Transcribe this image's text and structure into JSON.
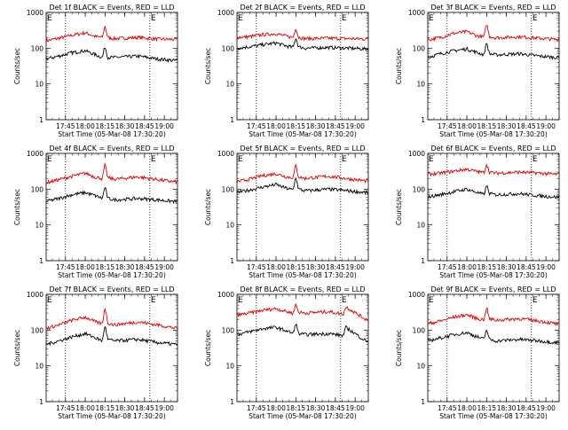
{
  "page": {
    "background": "#ffffff",
    "colors": {
      "events": "#000000",
      "lld": "#e00000",
      "axes": "#000000"
    }
  },
  "chart_data": [
    {
      "type": "line",
      "title": "Det 1f BLACK = Events, RED = LLD",
      "ylabel": "Counts/sec",
      "xlabel": "Start Time (05-Mar-08 17:30:20)",
      "yscale": "log",
      "ylim": [
        1,
        1000
      ],
      "yticks": [
        "1",
        "10",
        "100",
        "1000"
      ],
      "xlim": [
        "17:30:20",
        "19:10:00"
      ],
      "xticks": [
        "17:45",
        "18:00",
        "18:15",
        "18:30",
        "18:45",
        "19:00"
      ],
      "markers": [
        "17:45",
        "18:49"
      ],
      "corner_labels": [
        "E",
        "E"
      ],
      "series": [
        {
          "color": "#e00000",
          "x": [
            "17:30",
            "17:40",
            "17:50",
            "18:00",
            "18:08",
            "18:13",
            "18:15",
            "18:17",
            "18:22",
            "18:40",
            "18:55",
            "19:08"
          ],
          "values": [
            160,
            190,
            230,
            270,
            210,
            200,
            430,
            200,
            185,
            200,
            180,
            175
          ]
        },
        {
          "color": "#000000",
          "x": [
            "17:30",
            "17:40",
            "17:50",
            "18:00",
            "18:08",
            "18:13",
            "18:15",
            "18:17",
            "18:22",
            "18:40",
            "18:55",
            "19:08"
          ],
          "values": [
            50,
            60,
            75,
            85,
            65,
            55,
            115,
            55,
            55,
            60,
            50,
            45
          ]
        }
      ]
    },
    {
      "type": "line",
      "title": "Det 2f BLACK = Events, RED = LLD",
      "ylabel": "Counts/sec",
      "xlabel": "Start Time (05-Mar-08 17:30:20)",
      "yscale": "log",
      "ylim": [
        1,
        1000
      ],
      "yticks": [
        "1",
        "10",
        "100",
        "1000"
      ],
      "xlim": [
        "17:30:20",
        "19:10:00"
      ],
      "xticks": [
        "17:45",
        "18:00",
        "18:15",
        "18:30",
        "18:45",
        "19:00"
      ],
      "markers": [
        "17:45",
        "18:49"
      ],
      "corner_labels": [
        "E",
        "E"
      ],
      "series": [
        {
          "color": "#e00000",
          "x": [
            "17:30",
            "17:40",
            "17:50",
            "18:00",
            "18:08",
            "18:13",
            "18:15",
            "18:17",
            "18:22",
            "18:40",
            "18:55",
            "19:08"
          ],
          "values": [
            200,
            210,
            240,
            255,
            215,
            200,
            380,
            200,
            185,
            190,
            185,
            180
          ]
        },
        {
          "color": "#000000",
          "x": [
            "17:30",
            "17:40",
            "17:50",
            "18:00",
            "18:08",
            "18:13",
            "18:15",
            "18:17",
            "18:22",
            "18:40",
            "18:55",
            "19:08"
          ],
          "values": [
            100,
            110,
            125,
            140,
            115,
            105,
            200,
            110,
            100,
            105,
            100,
            95
          ]
        }
      ]
    },
    {
      "type": "line",
      "title": "Det 3f BLACK = Events, RED = LLD",
      "ylabel": "Counts/sec",
      "xlabel": "Start Time (05-Mar-08 17:30:20)",
      "yscale": "log",
      "ylim": [
        1,
        1000
      ],
      "yticks": [
        "1",
        "10",
        "100",
        "1000"
      ],
      "xlim": [
        "17:30:20",
        "19:10:00"
      ],
      "xticks": [
        "17:45",
        "18:00",
        "18:15",
        "18:30",
        "18:45",
        "19:00"
      ],
      "markers": [
        "17:45",
        "18:49"
      ],
      "corner_labels": [
        "E",
        "E"
      ],
      "series": [
        {
          "color": "#e00000",
          "x": [
            "17:30",
            "17:40",
            "17:50",
            "18:00",
            "18:08",
            "18:13",
            "18:15",
            "18:17",
            "18:22",
            "18:40",
            "18:55",
            "19:08"
          ],
          "values": [
            170,
            200,
            260,
            290,
            220,
            205,
            500,
            215,
            195,
            210,
            190,
            175
          ]
        },
        {
          "color": "#000000",
          "x": [
            "17:30",
            "17:40",
            "17:50",
            "18:00",
            "18:08",
            "18:13",
            "18:15",
            "18:17",
            "18:22",
            "18:40",
            "18:55",
            "19:08"
          ],
          "values": [
            55,
            70,
            85,
            95,
            75,
            65,
            150,
            70,
            65,
            70,
            60,
            55
          ]
        }
      ]
    },
    {
      "type": "line",
      "title": "Det 4f BLACK = Events, RED = LLD",
      "ylabel": "Counts/sec",
      "xlabel": "Start Time (05-Mar-08 17:30:20)",
      "yscale": "log",
      "ylim": [
        1,
        1000
      ],
      "yticks": [
        "1",
        "10",
        "100",
        "1000"
      ],
      "xlim": [
        "17:30:20",
        "19:10:00"
      ],
      "xticks": [
        "17:45",
        "18:00",
        "18:15",
        "18:30",
        "18:45",
        "19:00"
      ],
      "markers": [
        "17:45",
        "18:49"
      ],
      "corner_labels": [
        "E",
        "E"
      ],
      "series": [
        {
          "color": "#e00000",
          "x": [
            "17:30",
            "17:40",
            "17:50",
            "18:00",
            "18:08",
            "18:13",
            "18:15",
            "18:17",
            "18:22",
            "18:40",
            "18:55",
            "19:08"
          ],
          "values": [
            150,
            185,
            230,
            280,
            215,
            200,
            500,
            210,
            190,
            220,
            185,
            160
          ]
        },
        {
          "color": "#000000",
          "x": [
            "17:30",
            "17:40",
            "17:50",
            "18:00",
            "18:08",
            "18:13",
            "18:15",
            "18:17",
            "18:22",
            "18:40",
            "18:55",
            "19:08"
          ],
          "values": [
            45,
            55,
            70,
            80,
            65,
            55,
            120,
            55,
            50,
            55,
            50,
            45
          ]
        }
      ]
    },
    {
      "type": "line",
      "title": "Det 5f BLACK = Events, RED = LLD",
      "ylabel": "Counts/sec",
      "xlabel": "Start Time (05-Mar-08 17:30:20)",
      "yscale": "log",
      "ylim": [
        1,
        1000
      ],
      "yticks": [
        "1",
        "10",
        "100",
        "1000"
      ],
      "xlim": [
        "17:30:20",
        "19:10:00"
      ],
      "xticks": [
        "17:45",
        "18:00",
        "18:15",
        "18:30",
        "18:45",
        "19:00"
      ],
      "markers": [
        "17:45",
        "18:49"
      ],
      "corner_labels": [
        "E",
        "E"
      ],
      "series": [
        {
          "color": "#e00000",
          "x": [
            "17:30",
            "17:40",
            "17:50",
            "18:00",
            "18:08",
            "18:13",
            "18:15",
            "18:17",
            "18:22",
            "18:40",
            "18:55",
            "19:08"
          ],
          "values": [
            160,
            190,
            240,
            270,
            220,
            210,
            480,
            220,
            200,
            230,
            195,
            170
          ]
        },
        {
          "color": "#000000",
          "x": [
            "17:30",
            "17:40",
            "17:50",
            "18:00",
            "18:08",
            "18:13",
            "18:15",
            "18:17",
            "18:22",
            "18:40",
            "18:55",
            "19:08"
          ],
          "values": [
            80,
            95,
            115,
            135,
            105,
            95,
            230,
            100,
            90,
            100,
            90,
            80
          ]
        }
      ]
    },
    {
      "type": "line",
      "title": "Det 6f BLACK = Events, RED = LLD",
      "ylabel": "Counts/sec",
      "xlabel": "Start Time (05-Mar-08 17:30:20)",
      "yscale": "log",
      "ylim": [
        1,
        1000
      ],
      "yticks": [
        "1",
        "10",
        "100",
        "1000"
      ],
      "xlim": [
        "17:30:20",
        "19:10:00"
      ],
      "xticks": [
        "17:45",
        "18:00",
        "18:15",
        "18:30",
        "18:45",
        "19:00"
      ],
      "markers": [
        "17:45",
        "18:49"
      ],
      "corner_labels": [
        "E",
        "E"
      ],
      "series": [
        {
          "color": "#e00000",
          "x": [
            "17:30",
            "17:40",
            "17:50",
            "18:00",
            "18:08",
            "18:13",
            "18:15",
            "18:17",
            "18:22",
            "18:40",
            "18:55",
            "19:08"
          ],
          "values": [
            260,
            280,
            320,
            360,
            310,
            290,
            520,
            300,
            280,
            300,
            280,
            260
          ]
        },
        {
          "color": "#000000",
          "x": [
            "17:30",
            "17:40",
            "17:50",
            "18:00",
            "18:08",
            "18:13",
            "18:15",
            "18:17",
            "18:22",
            "18:40",
            "18:55",
            "19:08"
          ],
          "values": [
            60,
            70,
            85,
            100,
            80,
            70,
            130,
            75,
            70,
            75,
            65,
            60
          ]
        }
      ]
    },
    {
      "type": "line",
      "title": "Det 7f BLACK = Events, RED = LLD",
      "ylabel": "Counts/sec",
      "xlabel": "Start Time (05-Mar-08 17:30:20)",
      "yscale": "log",
      "ylim": [
        1,
        1000
      ],
      "yticks": [
        "1",
        "10",
        "100",
        "1000"
      ],
      "xlim": [
        "17:30:20",
        "19:10:00"
      ],
      "xticks": [
        "17:45",
        "18:00",
        "18:15",
        "18:30",
        "18:45",
        "19:00"
      ],
      "markers": [
        "17:45",
        "18:49"
      ],
      "corner_labels": [
        "E",
        "E"
      ],
      "series": [
        {
          "color": "#e00000",
          "x": [
            "17:30",
            "17:40",
            "17:50",
            "18:00",
            "18:08",
            "18:13",
            "18:15",
            "18:17",
            "18:22",
            "18:40",
            "18:55",
            "19:08"
          ],
          "values": [
            110,
            140,
            190,
            230,
            170,
            150,
            450,
            160,
            140,
            170,
            140,
            115
          ]
        },
        {
          "color": "#000000",
          "x": [
            "17:30",
            "17:40",
            "17:50",
            "18:00",
            "18:08",
            "18:13",
            "18:15",
            "18:17",
            "18:22",
            "18:40",
            "18:55",
            "19:08"
          ],
          "values": [
            40,
            50,
            65,
            80,
            60,
            50,
            140,
            55,
            50,
            55,
            45,
            40
          ]
        }
      ]
    },
    {
      "type": "line",
      "title": "Det 8f BLACK = Events, RED = LLD",
      "ylabel": "Counts/sec",
      "xlabel": "Start Time (05-Mar-08 17:30:20)",
      "yscale": "log",
      "ylim": [
        1,
        1000
      ],
      "yticks": [
        "1",
        "10",
        "100",
        "1000"
      ],
      "xlim": [
        "17:30:20",
        "19:10:00"
      ],
      "xticks": [
        "17:45",
        "18:00",
        "18:15",
        "18:30",
        "18:45",
        "19:00"
      ],
      "markers": [
        "17:45",
        "18:49"
      ],
      "corner_labels": [
        "E",
        "E"
      ],
      "series": [
        {
          "color": "#e00000",
          "x": [
            "17:30",
            "17:40",
            "17:50",
            "18:00",
            "18:08",
            "18:13",
            "18:15",
            "18:17",
            "18:22",
            "18:40",
            "18:51",
            "18:53",
            "19:08"
          ],
          "values": [
            260,
            300,
            360,
            400,
            330,
            300,
            540,
            320,
            300,
            330,
            280,
            450,
            200
          ]
        },
        {
          "color": "#000000",
          "x": [
            "17:30",
            "17:40",
            "17:50",
            "18:00",
            "18:08",
            "18:13",
            "18:15",
            "18:17",
            "18:22",
            "18:40",
            "18:51",
            "18:53",
            "19:08"
          ],
          "values": [
            75,
            90,
            110,
            120,
            95,
            80,
            160,
            80,
            75,
            80,
            70,
            120,
            50
          ]
        }
      ]
    },
    {
      "type": "line",
      "title": "Det 9f BLACK = Events, RED = LLD",
      "ylabel": "Counts/sec",
      "xlabel": "Start Time (05-Mar-08 17:30:20)",
      "yscale": "log",
      "ylim": [
        1,
        1000
      ],
      "yticks": [
        "1",
        "10",
        "100",
        "1000"
      ],
      "xlim": [
        "17:30:20",
        "19:10:00"
      ],
      "xticks": [
        "17:45",
        "18:00",
        "18:15",
        "18:30",
        "18:45",
        "19:00"
      ],
      "markers": [
        "17:45",
        "18:49"
      ],
      "corner_labels": [
        "E",
        "E"
      ],
      "series": [
        {
          "color": "#e00000",
          "x": [
            "17:30",
            "17:40",
            "17:50",
            "18:00",
            "18:08",
            "18:13",
            "18:15",
            "18:17",
            "18:22",
            "18:40",
            "18:55",
            "19:08"
          ],
          "values": [
            150,
            180,
            230,
            270,
            210,
            195,
            450,
            205,
            190,
            210,
            180,
            150
          ]
        },
        {
          "color": "#000000",
          "x": [
            "17:30",
            "17:40",
            "17:50",
            "18:00",
            "18:08",
            "18:13",
            "18:15",
            "18:17",
            "18:22",
            "18:40",
            "18:55",
            "19:08"
          ],
          "values": [
            50,
            60,
            75,
            85,
            65,
            55,
            110,
            55,
            50,
            55,
            50,
            45
          ]
        }
      ]
    }
  ]
}
